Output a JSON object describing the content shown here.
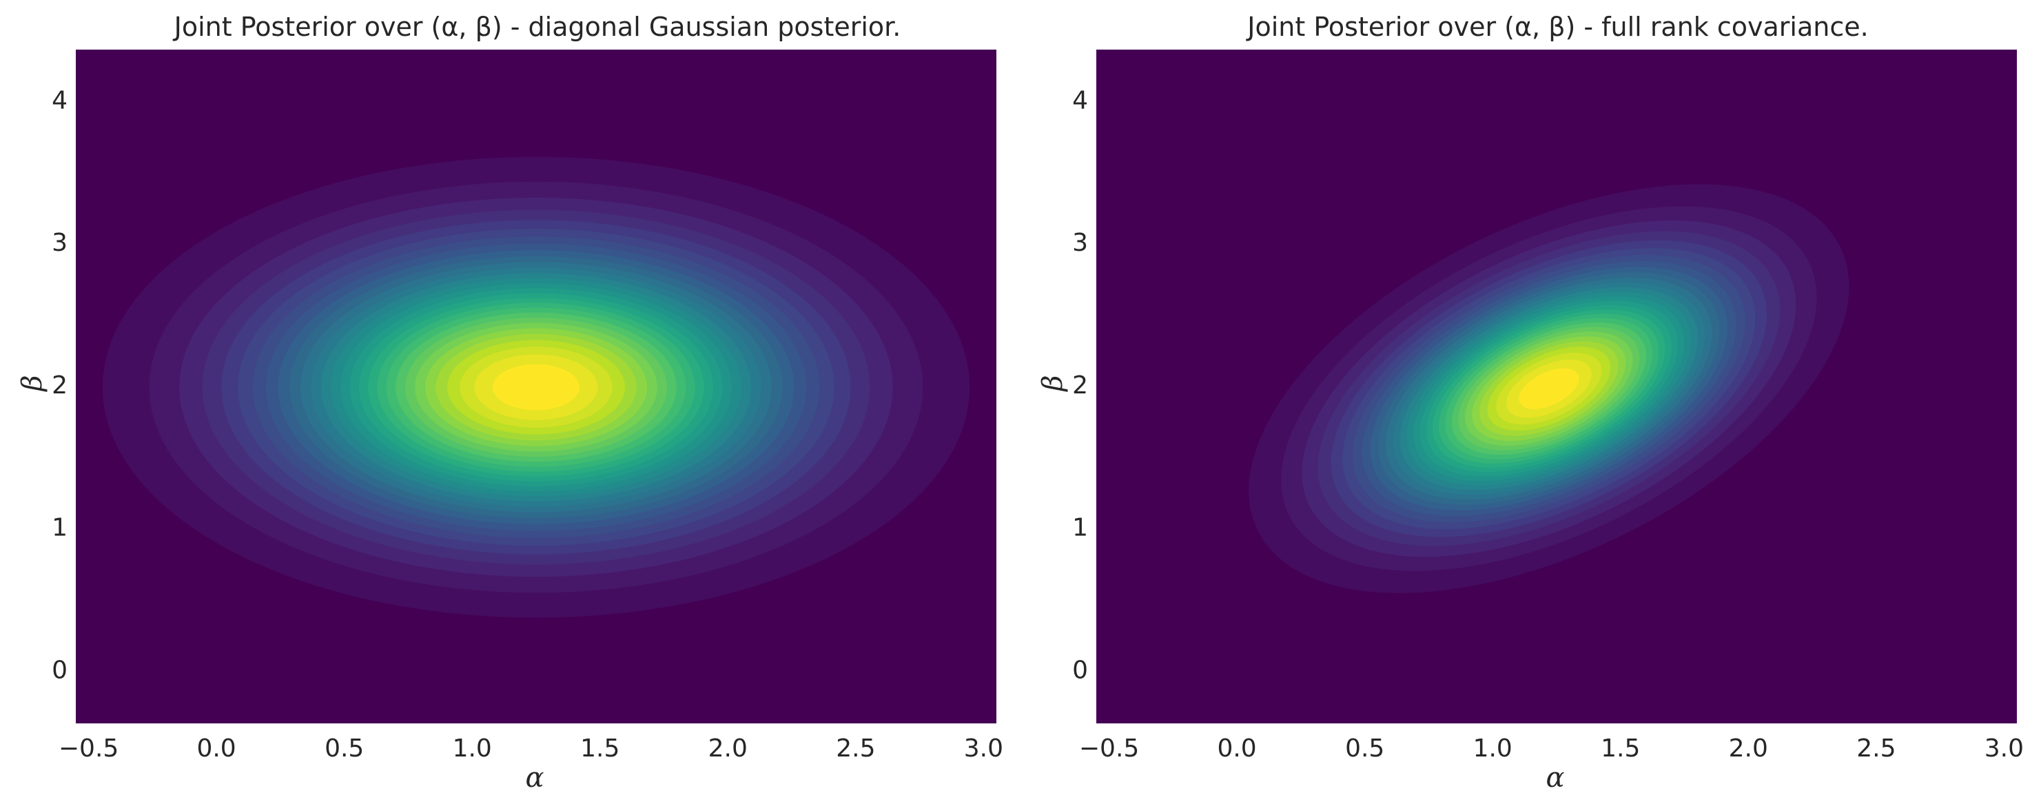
{
  "chart_data": [
    {
      "type": "heatmap",
      "title": "Joint Posterior over (α, β) - diagonal Gaussian posterior.",
      "xlabel": "α",
      "ylabel": "β",
      "xlim": [
        -0.55,
        3.05
      ],
      "ylim": [
        -0.38,
        4.35
      ],
      "xticks": [
        "−0.5",
        "0.0",
        "0.5",
        "1.0",
        "1.5",
        "2.0",
        "2.5",
        "3.0"
      ],
      "xtick_values": [
        -0.5,
        0.0,
        0.5,
        1.0,
        1.5,
        2.0,
        2.5,
        3.0
      ],
      "yticks": [
        "0",
        "1",
        "2",
        "3",
        "4"
      ],
      "ytick_values": [
        0,
        1,
        2,
        3,
        4
      ],
      "colormap": "viridis",
      "grid": false,
      "distribution": {
        "mean": [
          1.25,
          1.98
        ],
        "sd": [
          0.65,
          0.62
        ],
        "correlation": 0.0
      }
    },
    {
      "type": "heatmap",
      "title": "Joint Posterior over (α, β) - full rank covariance.",
      "xlabel": "α",
      "ylabel": "β",
      "xlim": [
        -0.55,
        3.05
      ],
      "ylim": [
        -0.38,
        4.35
      ],
      "xticks": [
        "−0.5",
        "0.0",
        "0.5",
        "1.0",
        "1.5",
        "2.0",
        "2.5",
        "3.0"
      ],
      "xtick_values": [
        -0.5,
        0.0,
        0.5,
        1.0,
        1.5,
        2.0,
        2.5,
        3.0
      ],
      "yticks": [
        "0",
        "1",
        "2",
        "3",
        "4"
      ],
      "ytick_values": [
        0,
        1,
        2,
        3,
        4
      ],
      "colormap": "viridis",
      "grid": false,
      "distribution": {
        "mean": [
          1.22,
          1.97
        ],
        "sd": [
          0.45,
          0.55
        ],
        "correlation": 0.5
      }
    }
  ]
}
